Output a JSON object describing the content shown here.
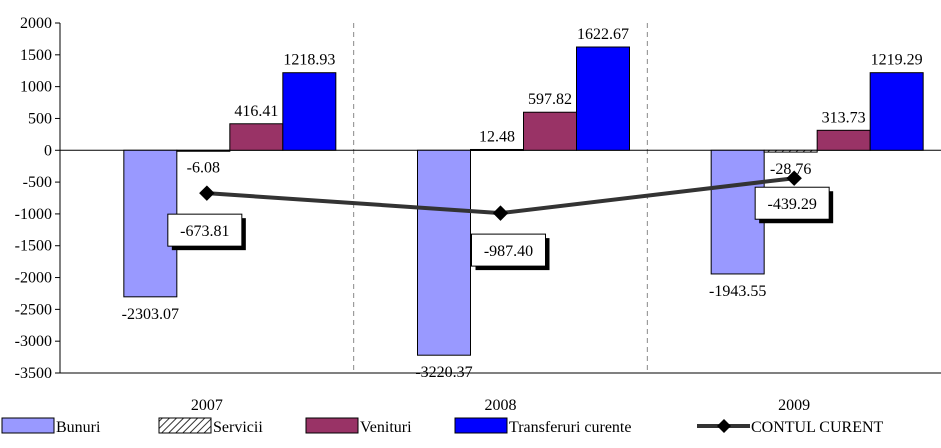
{
  "chart_data": {
    "type": "bar",
    "categories": [
      "2007",
      "2008",
      "2009"
    ],
    "series": [
      {
        "name": "Bunuri",
        "color": "#9999ff",
        "values": [
          -2303.07,
          -3220.37,
          -1943.55
        ]
      },
      {
        "name": "Servicii",
        "color": "#ffffff",
        "pattern": "diagonal-hatch",
        "values": [
          -6.08,
          12.48,
          -28.76
        ]
      },
      {
        "name": "Venituri",
        "color": "#993366",
        "values": [
          416.41,
          597.82,
          313.73
        ]
      },
      {
        "name": "Transferuri curente",
        "color": "#0000ff",
        "values": [
          1218.93,
          1622.67,
          1219.29
        ]
      },
      {
        "name": "CONTUL CURENT",
        "type": "line",
        "color": "#333333",
        "marker": "diamond",
        "values": [
          -673.81,
          -987.4,
          -439.29
        ]
      }
    ],
    "value_labels": {
      "Bunuri": [
        "-2303.07",
        "-3220.37",
        "-1943.55"
      ],
      "Servicii": [
        "-6.08",
        "12.48",
        "-28.76"
      ],
      "Venituri": [
        "416.41",
        "597.82",
        "313.73"
      ],
      "Transferuri curente": [
        "1218.93",
        "1622.67",
        "1219.29"
      ],
      "CONTUL CURENT": [
        "-673.81",
        "-987.40",
        "-439.29"
      ]
    },
    "ylim": [
      -3500,
      2000
    ],
    "yticks": [
      2000,
      1500,
      1000,
      500,
      0,
      -500,
      -1000,
      -1500,
      -2000,
      -2500,
      -3000,
      -3500
    ],
    "ytick_labels": [
      "2000",
      "1500",
      "1000",
      "500",
      "0",
      "-500",
      "-1000",
      "-1500",
      "-2000",
      "-2500",
      "-3000",
      "-3500"
    ],
    "grid": "dashed vertical separators between categories",
    "legend_position": "bottom",
    "title": "",
    "xlabel": "",
    "ylabel": ""
  }
}
